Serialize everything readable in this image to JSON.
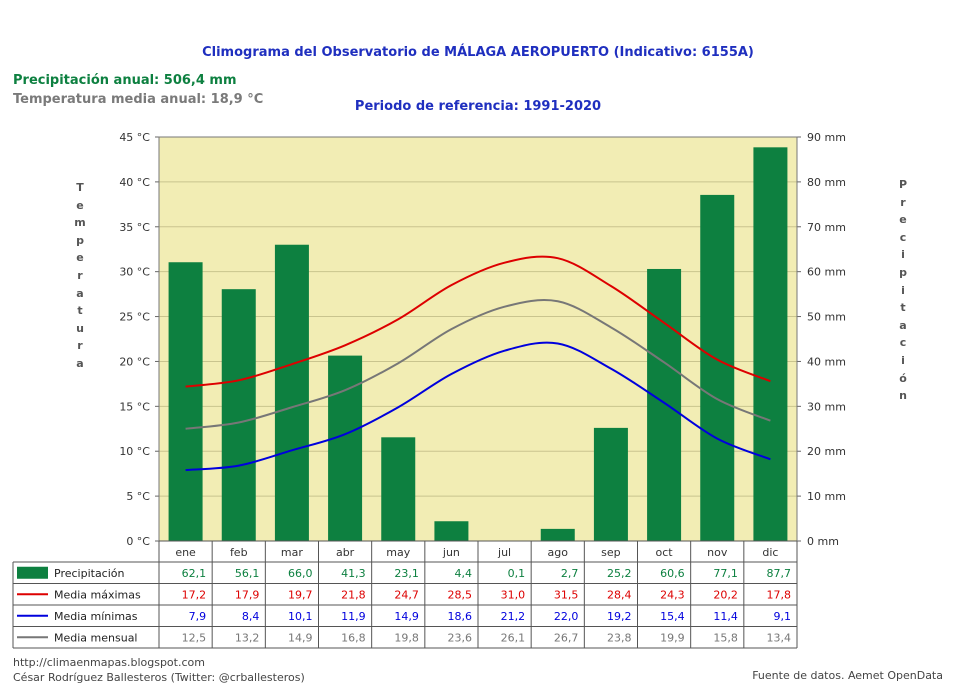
{
  "title": "Climograma del Observatorio de MÁLAGA AEROPUERTO (Indicativo: 6155A)",
  "subtitle": "Periodo de referencia: 1991-2020",
  "annual_precipitation": "Precipitación anual: 506,4 mm",
  "annual_temperature": "Temperatura media anual: 18,9 °C",
  "footer": {
    "blog": "http://climaenmapas.blogspot.com",
    "author": "César Rodríguez Ballesteros (Twitter: @crballesteros)",
    "source": "Fuente de datos. Aemet OpenData"
  },
  "chart_data": {
    "type": "bar",
    "title": "Climograma del Observatorio de MÁLAGA AEROPUERTO (Indicativo: 6155A)",
    "categories": [
      "ene",
      "feb",
      "mar",
      "abr",
      "may",
      "jun",
      "jul",
      "ago",
      "sep",
      "oct",
      "nov",
      "dic"
    ],
    "ylabel_left": "Temperatura",
    "ylabel_right": "Precipitación",
    "ylim_left": [
      0,
      45
    ],
    "ylim_right": [
      0,
      90
    ],
    "yticks_left": [
      "0 °C",
      "5 °C",
      "10 °C",
      "15 °C",
      "20 °C",
      "25 °C",
      "30 °C",
      "35 °C",
      "40 °C",
      "45 °C"
    ],
    "yticks_right": [
      "0 mm",
      "10 mm",
      "20 mm",
      "30 mm",
      "40 mm",
      "50 mm",
      "60 mm",
      "70 mm",
      "80 mm",
      "90 mm"
    ],
    "series": [
      {
        "name": "Precipitación",
        "kind": "bar",
        "axis": "right",
        "color": "#0d8040",
        "values": [
          62.1,
          56.1,
          66.0,
          41.3,
          23.1,
          4.4,
          0.1,
          2.7,
          25.2,
          60.6,
          77.1,
          87.7
        ],
        "labels": [
          "62,1",
          "56,1",
          "66,0",
          "41,3",
          "23,1",
          "4,4",
          "0,1",
          "2,7",
          "25,2",
          "60,6",
          "77,1",
          "87,7"
        ]
      },
      {
        "name": "Media máximas",
        "kind": "line",
        "axis": "left",
        "color": "#dd0000",
        "values": [
          17.2,
          17.9,
          19.7,
          21.8,
          24.7,
          28.5,
          31.0,
          31.5,
          28.4,
          24.3,
          20.2,
          17.8
        ],
        "labels": [
          "17,2",
          "17,9",
          "19,7",
          "21,8",
          "24,7",
          "28,5",
          "31,0",
          "31,5",
          "28,4",
          "24,3",
          "20,2",
          "17,8"
        ]
      },
      {
        "name": "Media mínimas",
        "kind": "line",
        "axis": "left",
        "color": "#0000dd",
        "values": [
          7.9,
          8.4,
          10.1,
          11.9,
          14.9,
          18.6,
          21.2,
          22.0,
          19.2,
          15.4,
          11.4,
          9.1
        ],
        "labels": [
          "7,9",
          "8,4",
          "10,1",
          "11,9",
          "14,9",
          "18,6",
          "21,2",
          "22,0",
          "19,2",
          "15,4",
          "11,4",
          "9,1"
        ]
      },
      {
        "name": "Media mensual",
        "kind": "line",
        "axis": "left",
        "color": "#777777",
        "values": [
          12.5,
          13.2,
          14.9,
          16.8,
          19.8,
          23.6,
          26.1,
          26.7,
          23.8,
          19.9,
          15.8,
          13.4
        ],
        "labels": [
          "12,5",
          "13,2",
          "14,9",
          "16,8",
          "19,8",
          "23,6",
          "26,1",
          "26,7",
          "23,8",
          "19,9",
          "15,8",
          "13,4"
        ]
      }
    ],
    "plot_background": "#f2edb4",
    "grid": true
  }
}
